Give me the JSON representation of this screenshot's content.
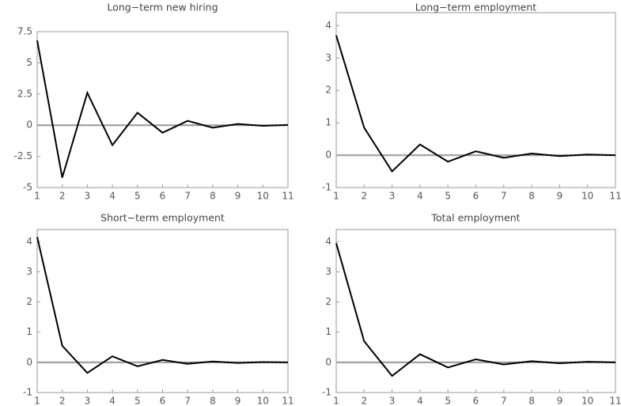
{
  "chart_data": [
    {
      "type": "line",
      "title": "Long−term new hiring",
      "x": [
        1,
        2,
        3,
        4,
        5,
        6,
        7,
        8,
        9,
        10,
        11
      ],
      "series": [
        {
          "color": "#000000",
          "values": [
            6.8,
            -4.2,
            2.6,
            -1.6,
            1.0,
            -0.6,
            0.35,
            -0.2,
            0.1,
            -0.05,
            0.02
          ]
        }
      ],
      "xlim": [
        1,
        11
      ],
      "xticks": [
        1,
        2,
        3,
        4,
        5,
        6,
        7,
        8,
        9,
        10,
        11
      ],
      "ylim": [
        -5,
        7.5
      ],
      "yticks": [
        -5,
        -2.5,
        0,
        2.5,
        5,
        7.5
      ],
      "hline": 0
    },
    {
      "type": "line",
      "title": "Long−term employment",
      "x": [
        1,
        2,
        3,
        4,
        5,
        6,
        7,
        8,
        9,
        10,
        11
      ],
      "series": [
        {
          "color": "#000000",
          "values": [
            3.7,
            0.85,
            -0.5,
            0.33,
            -0.2,
            0.12,
            -0.08,
            0.05,
            -0.03,
            0.02,
            0.0
          ]
        }
      ],
      "xlim": [
        1,
        11
      ],
      "xticks": [
        1,
        2,
        3,
        4,
        5,
        6,
        7,
        8,
        9,
        10,
        11
      ],
      "ylim": [
        -1,
        4.4
      ],
      "yticks": [
        -1,
        0,
        1,
        2,
        3,
        4
      ],
      "hline": 0
    },
    {
      "type": "line",
      "title": "Short−term employment",
      "x": [
        1,
        2,
        3,
        4,
        5,
        6,
        7,
        8,
        9,
        10,
        11
      ],
      "series": [
        {
          "color": "#000000",
          "values": [
            4.15,
            0.55,
            -0.35,
            0.2,
            -0.13,
            0.08,
            -0.05,
            0.03,
            -0.02,
            0.01,
            0.0
          ]
        }
      ],
      "xlim": [
        1,
        11
      ],
      "xticks": [
        1,
        2,
        3,
        4,
        5,
        6,
        7,
        8,
        9,
        10,
        11
      ],
      "ylim": [
        -1,
        4.4
      ],
      "yticks": [
        -1,
        0,
        1,
        2,
        3,
        4
      ],
      "hline": 0
    },
    {
      "type": "line",
      "title": "Total employment",
      "x": [
        1,
        2,
        3,
        4,
        5,
        6,
        7,
        8,
        9,
        10,
        11
      ],
      "series": [
        {
          "color": "#000000",
          "values": [
            3.95,
            0.7,
            -0.45,
            0.27,
            -0.17,
            0.1,
            -0.07,
            0.04,
            -0.03,
            0.02,
            0.0
          ]
        }
      ],
      "xlim": [
        1,
        11
      ],
      "xticks": [
        1,
        2,
        3,
        4,
        5,
        6,
        7,
        8,
        9,
        10,
        11
      ],
      "ylim": [
        -1,
        4.4
      ],
      "yticks": [
        -1,
        0,
        1,
        2,
        3,
        4
      ],
      "hline": 0
    }
  ]
}
